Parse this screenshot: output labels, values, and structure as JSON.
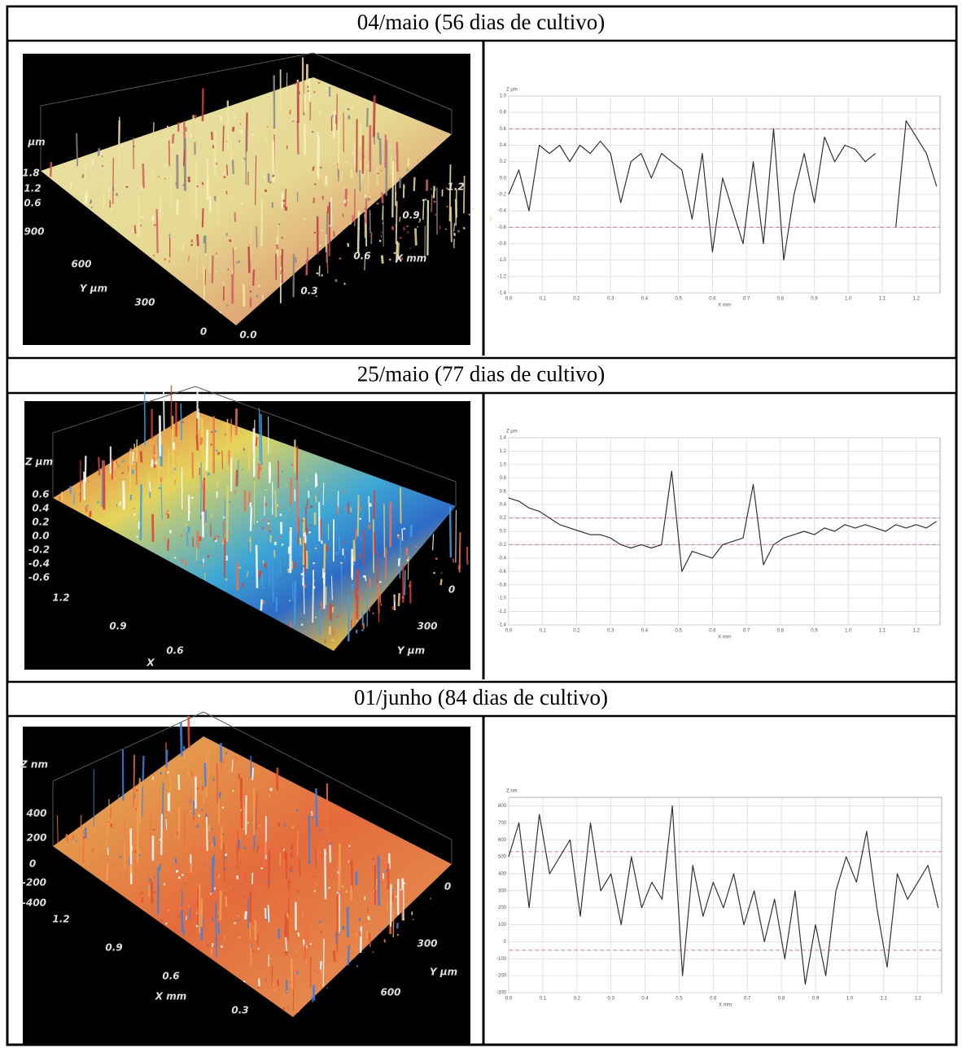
{
  "rows": [
    {
      "title": "04/maio (56 dias de cultivo)",
      "surface": {
        "labels": [
          "µm",
          "1.8",
          "1.2",
          "0.6",
          "900",
          "600",
          "Y µm",
          "300",
          "0",
          "0.0",
          "0.3",
          "0.6",
          "X mm",
          "0.9",
          "1.2"
        ]
      },
      "profile": {
        "type": "line",
        "y_label": "Z µm",
        "x_label": "X mm",
        "xlim": [
          0,
          1.27
        ],
        "xticks": [
          {
            "value": 0,
            "label": "0.0"
          },
          0.1,
          0.2,
          0.3,
          0.4,
          0.5,
          0.6,
          0.7,
          0.8,
          0.9,
          {
            "value": 1,
            "label": "1.0"
          },
          1.1,
          1.2
        ],
        "ylim": [
          -1.4,
          1.0
        ],
        "yticks": [
          {
            "value": 1,
            "label": "1.0"
          },
          0.8,
          0.6,
          0.4,
          0.2,
          {
            "value": 0,
            "label": "0.0"
          },
          -0.2,
          -0.4,
          -0.6,
          -0.8,
          {
            "value": -1,
            "label": "-1.0"
          },
          -1.2,
          -1.4
        ],
        "reference_lines": [
          0.6,
          -0.6
        ],
        "grid": true,
        "color": "#333333",
        "reference_color": "#e07a8a",
        "x": [
          0,
          0.03,
          0.06,
          0.09,
          0.12,
          0.15,
          0.18,
          0.21,
          0.24,
          0.27,
          0.3,
          0.33,
          0.36,
          0.39,
          0.42,
          0.45,
          0.48,
          0.51,
          0.54,
          0.57,
          0.6,
          0.63,
          0.66,
          0.69,
          0.72,
          0.75,
          0.78,
          0.81,
          0.84,
          0.87,
          0.9,
          0.93,
          0.96,
          0.99,
          1.02,
          1.05,
          1.08,
          1.11,
          1.14,
          1.17,
          1.2,
          1.23,
          1.26
        ],
        "values": [
          -0.2,
          0.1,
          -0.4,
          0.4,
          0.3,
          0.4,
          0.2,
          0.4,
          0.3,
          0.45,
          0.3,
          -0.3,
          0.2,
          0.3,
          0.0,
          0.3,
          0.2,
          0.1,
          -0.5,
          0.3,
          -0.9,
          0.0,
          -0.4,
          -0.8,
          0.2,
          -0.8,
          0.6,
          -1.0,
          -0.2,
          0.3,
          -0.3,
          0.5,
          0.2,
          0.4,
          0.35,
          0.2,
          0.3,
          null,
          -0.6,
          0.7,
          0.5,
          0.3,
          -0.1
        ]
      }
    },
    {
      "title": "25/maio (77 dias de cultivo)",
      "surface": {
        "labels": [
          "Z µm",
          "0.6",
          "0.4",
          "0.2",
          "0.0",
          "-0.2",
          "-0.4",
          "-0.6",
          "1.2",
          "0.9",
          "0.6",
          "X",
          "0",
          "300",
          "Y µm"
        ]
      },
      "profile": {
        "type": "line",
        "y_label": "Z µm",
        "x_label": "X mm",
        "xlim": [
          0,
          1.27
        ],
        "xticks": [
          {
            "value": 0,
            "label": "0.0"
          },
          0.1,
          0.2,
          0.3,
          0.4,
          0.5,
          0.6,
          0.7,
          0.8,
          0.9,
          {
            "value": 1,
            "label": "1.0"
          },
          1.1,
          1.2
        ],
        "ylim": [
          -1.4,
          1.4
        ],
        "yticks": [
          1.4,
          1.2,
          {
            "value": 1,
            "label": "1.0"
          },
          0.8,
          0.6,
          0.4,
          0.2,
          {
            "value": 0,
            "label": "0.0"
          },
          -0.2,
          -0.4,
          -0.6,
          -0.8,
          {
            "value": -1,
            "label": "-1.0"
          },
          -1.2,
          -1.4
        ],
        "reference_lines": [
          0.2,
          -0.2
        ],
        "grid": true,
        "color": "#333333",
        "reference_color": "#e07a8a",
        "x": [
          0,
          0.03,
          0.06,
          0.09,
          0.12,
          0.15,
          0.18,
          0.21,
          0.24,
          0.27,
          0.3,
          0.33,
          0.36,
          0.39,
          0.42,
          0.45,
          0.48,
          0.51,
          0.54,
          0.57,
          0.6,
          0.63,
          0.66,
          0.69,
          0.72,
          0.75,
          0.78,
          0.81,
          0.84,
          0.87,
          0.9,
          0.93,
          0.96,
          0.99,
          1.02,
          1.05,
          1.08,
          1.11,
          1.14,
          1.17,
          1.2,
          1.23,
          1.26
        ],
        "values": [
          0.5,
          0.45,
          0.35,
          0.3,
          0.2,
          0.1,
          0.05,
          0.0,
          -0.05,
          -0.05,
          -0.1,
          -0.2,
          -0.25,
          -0.2,
          -0.25,
          -0.2,
          0.9,
          -0.6,
          -0.3,
          -0.35,
          -0.4,
          -0.2,
          -0.15,
          -0.1,
          0.7,
          -0.5,
          -0.2,
          -0.1,
          -0.05,
          0.0,
          -0.05,
          0.05,
          0.0,
          0.1,
          0.05,
          0.1,
          0.05,
          0.0,
          0.1,
          0.05,
          0.1,
          0.05,
          0.15
        ]
      }
    },
    {
      "title": "01/junho (84 dias de cultivo)",
      "surface": {
        "labels": [
          "Z nm",
          "400",
          "200",
          "0",
          "-200",
          "-400",
          "1.2",
          "0.9",
          "0.6",
          "X mm",
          "0.3",
          "0",
          "300",
          "600",
          "Y µm"
        ]
      },
      "profile": {
        "type": "line",
        "y_label": "Z nm",
        "x_label": "X mm",
        "xlim": [
          0,
          1.27
        ],
        "xticks": [
          {
            "value": 0,
            "label": "0.0"
          },
          0.1,
          0.2,
          0.3,
          0.4,
          0.5,
          0.6,
          0.7,
          0.8,
          0.9,
          {
            "value": 1,
            "label": "1.0"
          },
          1.1,
          1.2
        ],
        "ylim": [
          -300,
          850
        ],
        "yticks": [
          800,
          700,
          600,
          500,
          400,
          300,
          200,
          100,
          0,
          -100,
          -200,
          -300
        ],
        "reference_lines": [
          530,
          -50
        ],
        "grid": true,
        "color": "#333333",
        "reference_color": "#e07a8a",
        "x": [
          0,
          0.03,
          0.06,
          0.09,
          0.12,
          0.15,
          0.18,
          0.21,
          0.24,
          0.27,
          0.3,
          0.33,
          0.36,
          0.39,
          0.42,
          0.45,
          0.48,
          0.51,
          0.54,
          0.57,
          0.6,
          0.63,
          0.66,
          0.69,
          0.72,
          0.75,
          0.78,
          0.81,
          0.84,
          0.87,
          0.9,
          0.93,
          0.96,
          0.99,
          1.02,
          1.05,
          1.08,
          1.11,
          1.14,
          1.17,
          1.2,
          1.23,
          1.26
        ],
        "values": [
          500,
          700,
          200,
          750,
          400,
          500,
          600,
          150,
          700,
          300,
          400,
          100,
          500,
          200,
          350,
          250,
          800,
          -200,
          450,
          150,
          350,
          200,
          400,
          100,
          300,
          0,
          250,
          -100,
          300,
          -250,
          100,
          -200,
          300,
          500,
          350,
          650,
          200,
          -150,
          400,
          250,
          350,
          450,
          200
        ]
      }
    }
  ]
}
